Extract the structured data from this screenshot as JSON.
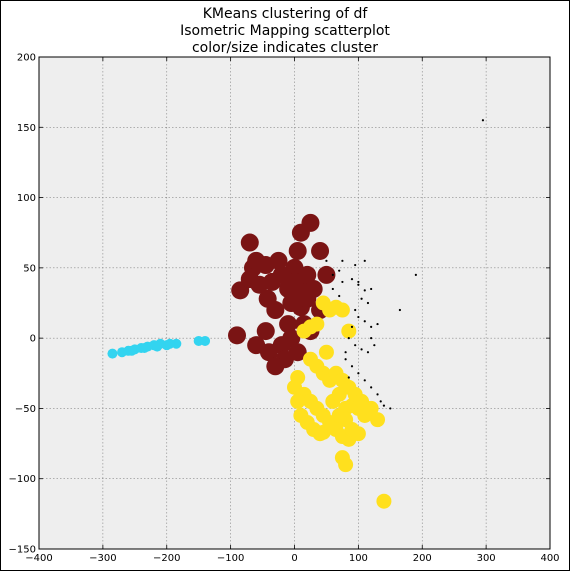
{
  "chart_data": {
    "type": "scatter",
    "title": [
      "KMeans clustering of df",
      "Isometric Mapping scatterplot",
      "color/size indicates cluster"
    ],
    "xlabel": "",
    "ylabel": "",
    "xlim": [
      -400,
      400
    ],
    "ylim": [
      -150,
      200
    ],
    "xticks": [
      -400,
      -300,
      -200,
      -100,
      0,
      100,
      200,
      300,
      400
    ],
    "yticks": [
      -150,
      -100,
      -50,
      0,
      50,
      100,
      150,
      200
    ],
    "xtick_labels": [
      "−400",
      "−300",
      "−200",
      "−100",
      "0",
      "100",
      "200",
      "300",
      "400"
    ],
    "ytick_labels": [
      "−150",
      "−100",
      "−50",
      "0",
      "50",
      "100",
      "150",
      "200"
    ],
    "grid": true,
    "background": "#eeeeee",
    "series": [
      {
        "color": "#7a1414",
        "size": 9,
        "points": [
          [
            -70,
            68
          ],
          [
            -65,
            50
          ],
          [
            -60,
            55
          ],
          [
            -45,
            52
          ],
          [
            -85,
            34
          ],
          [
            -70,
            42
          ],
          [
            -55,
            38
          ],
          [
            -42,
            28
          ],
          [
            -35,
            40
          ],
          [
            -20,
            45
          ],
          [
            -10,
            35
          ],
          [
            0,
            50
          ],
          [
            10,
            40
          ],
          [
            20,
            45
          ],
          [
            5,
            62
          ],
          [
            10,
            75
          ],
          [
            25,
            82
          ],
          [
            40,
            62
          ],
          [
            -90,
            2
          ],
          [
            -60,
            -5
          ],
          [
            -45,
            5
          ],
          [
            -30,
            20
          ],
          [
            -40,
            -10
          ],
          [
            -20,
            -5
          ],
          [
            -10,
            10
          ],
          [
            -5,
            25
          ],
          [
            10,
            22
          ],
          [
            20,
            28
          ],
          [
            30,
            35
          ],
          [
            40,
            20
          ],
          [
            5,
            -10
          ],
          [
            -15,
            -15
          ],
          [
            15,
            10
          ],
          [
            25,
            5
          ],
          [
            0,
            40
          ],
          [
            12,
            30
          ],
          [
            -25,
            55
          ],
          [
            50,
            45
          ],
          [
            -5,
            0
          ],
          [
            -30,
            -20
          ]
        ]
      },
      {
        "color": "#ffe01e",
        "size": 7.5,
        "points": [
          [
            45,
            25
          ],
          [
            55,
            20
          ],
          [
            65,
            22
          ],
          [
            75,
            20
          ],
          [
            35,
            10
          ],
          [
            25,
            8
          ],
          [
            15,
            5
          ],
          [
            85,
            5
          ],
          [
            45,
            -25
          ],
          [
            55,
            -30
          ],
          [
            65,
            -25
          ],
          [
            75,
            -30
          ],
          [
            85,
            -35
          ],
          [
            5,
            -28
          ],
          [
            0,
            -35
          ],
          [
            15,
            -40
          ],
          [
            25,
            -45
          ],
          [
            35,
            -50
          ],
          [
            45,
            -55
          ],
          [
            55,
            -60
          ],
          [
            65,
            -65
          ],
          [
            75,
            -70
          ],
          [
            85,
            -72
          ],
          [
            5,
            -45
          ],
          [
            10,
            -55
          ],
          [
            20,
            -60
          ],
          [
            30,
            -65
          ],
          [
            45,
            -67
          ],
          [
            60,
            -62
          ],
          [
            70,
            -55
          ],
          [
            80,
            -50
          ],
          [
            90,
            -48
          ],
          [
            100,
            -50
          ],
          [
            110,
            -55
          ],
          [
            120,
            -50
          ],
          [
            130,
            -58
          ],
          [
            40,
            -68
          ],
          [
            75,
            -85
          ],
          [
            80,
            -90
          ],
          [
            140,
            -116
          ],
          [
            95,
            -40
          ],
          [
            105,
            -45
          ],
          [
            90,
            -65
          ],
          [
            100,
            -68
          ],
          [
            25,
            -15
          ],
          [
            35,
            -20
          ],
          [
            50,
            -10
          ],
          [
            60,
            -45
          ],
          [
            70,
            -40
          ],
          [
            80,
            -58
          ]
        ]
      },
      {
        "color": "#33d4f0",
        "size": 5,
        "points": [
          [
            -285,
            -11
          ],
          [
            -270,
            -10
          ],
          [
            -260,
            -9
          ],
          [
            -250,
            -8
          ],
          [
            -240,
            -7
          ],
          [
            -230,
            -6
          ],
          [
            -220,
            -5
          ],
          [
            -210,
            -4
          ],
          [
            -200,
            -5
          ],
          [
            -185,
            -4
          ],
          [
            -150,
            -2
          ],
          [
            -140,
            -2
          ],
          [
            -255,
            -9
          ],
          [
            -235,
            -7
          ],
          [
            -215,
            -6
          ],
          [
            -195,
            -4
          ]
        ]
      },
      {
        "color": "#000000",
        "size": 1.1,
        "points": [
          [
            50,
            55
          ],
          [
            75,
            55
          ],
          [
            70,
            48
          ],
          [
            60,
            45
          ],
          [
            75,
            40
          ],
          [
            90,
            42
          ],
          [
            100,
            38
          ],
          [
            110,
            34
          ],
          [
            120,
            35
          ],
          [
            105,
            28
          ],
          [
            115,
            25
          ],
          [
            95,
            20
          ],
          [
            100,
            15
          ],
          [
            110,
            12
          ],
          [
            120,
            8
          ],
          [
            90,
            8
          ],
          [
            85,
            0
          ],
          [
            95,
            -5
          ],
          [
            105,
            -8
          ],
          [
            115,
            -10
          ],
          [
            130,
            10
          ],
          [
            125,
            -5
          ],
          [
            120,
            0
          ],
          [
            80,
            -15
          ],
          [
            90,
            -20
          ],
          [
            100,
            -25
          ],
          [
            110,
            -30
          ],
          [
            120,
            -35
          ],
          [
            130,
            -40
          ],
          [
            140,
            -48
          ],
          [
            150,
            -50
          ],
          [
            190,
            45
          ],
          [
            165,
            20
          ],
          [
            295,
            155
          ],
          [
            135,
            -45
          ],
          [
            70,
            30
          ],
          [
            60,
            35
          ],
          [
            80,
            -10
          ],
          [
            100,
            40
          ],
          [
            110,
            55
          ],
          [
            85,
            -28
          ],
          [
            95,
            52
          ]
        ]
      }
    ]
  }
}
